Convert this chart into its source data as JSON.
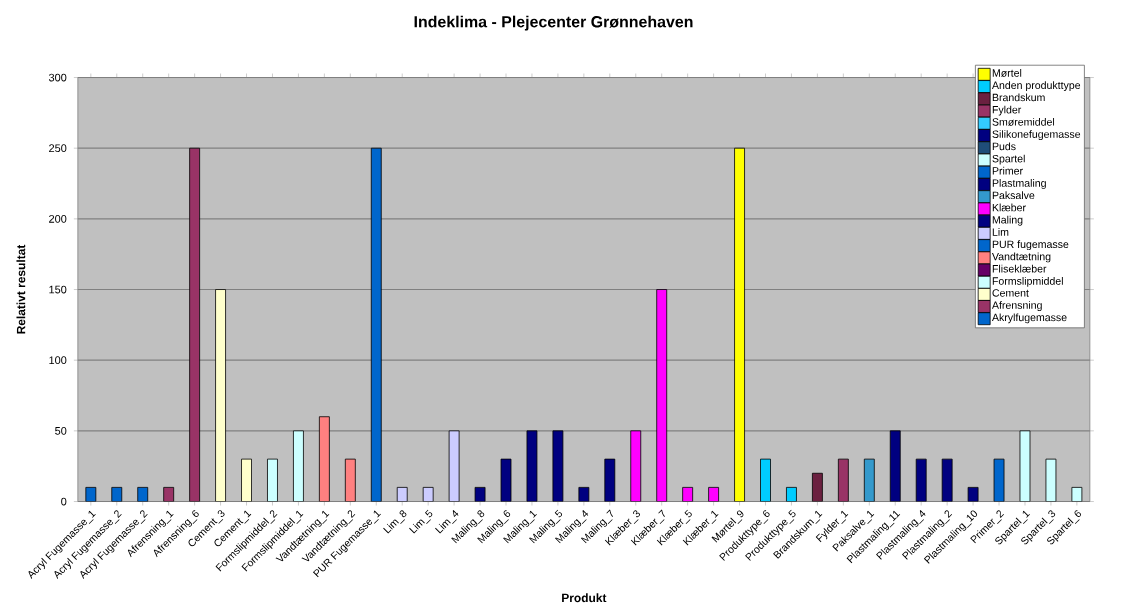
{
  "chart_data": {
    "type": "bar",
    "title": "Indeklima - Plejecenter Grønnehaven",
    "xlabel": "Produkt",
    "ylabel": "Relativt resultat",
    "categories": [
      "Acryl Fugemasse_1",
      "Acryl Fugemasse_2",
      "Acryl Fugemasse_2",
      "Afrensning_1",
      "Afrensning_6",
      "Cement_3",
      "Cement_1",
      "Formslipmiddel_2",
      "Formslipmiddel_1",
      "Vandtætning_1",
      "Vandtætning_2",
      "PUR Fugemasse_1",
      "Lim_8",
      "Lim_5",
      "Lim_4",
      "Maling_8",
      "Maling_6",
      "Maling_1",
      "Maling_5",
      "Maling_4",
      "Maling_7",
      "Klæber_3",
      "Klæber_7",
      "Klæber_5",
      "Klæber_1",
      "Mørtel_9",
      "Produkttype_6",
      "Produkttype_5",
      "Brandskum_1",
      "Fylder_1",
      "Paksalve_1",
      "Plastmaling_11",
      "Plastmaling_4",
      "Plastmaling_2",
      "Plastmaling_10",
      "Primer_2",
      "Spartel_1",
      "Spartel_3",
      "Spartel_6"
    ],
    "stacked": true,
    "ylim": [
      0,
      300
    ],
    "yticks": [
      0,
      50,
      100,
      150,
      200,
      250,
      300
    ],
    "grid": "y",
    "legend": "top right",
    "series": [
      {
        "name": "Mørtel",
        "color": "#ffff00",
        "values": [
          null,
          null,
          null,
          null,
          null,
          null,
          null,
          null,
          null,
          null,
          null,
          null,
          null,
          null,
          null,
          null,
          null,
          null,
          null,
          null,
          null,
          null,
          null,
          null,
          null,
          250,
          null,
          null,
          null,
          null,
          null,
          null,
          null,
          null,
          null,
          null,
          null,
          null,
          null
        ]
      },
      {
        "name": "Anden produkttype",
        "color": "#00ccff",
        "values": [
          null,
          null,
          null,
          null,
          null,
          null,
          null,
          null,
          null,
          null,
          null,
          null,
          null,
          null,
          null,
          null,
          null,
          null,
          null,
          null,
          null,
          null,
          null,
          null,
          null,
          null,
          30,
          10,
          null,
          null,
          null,
          null,
          null,
          null,
          null,
          null,
          null,
          null,
          null
        ]
      },
      {
        "name": "Brandskum",
        "color": "#6b2040",
        "values": [
          null,
          null,
          null,
          null,
          null,
          null,
          null,
          null,
          null,
          null,
          null,
          null,
          null,
          null,
          null,
          null,
          null,
          null,
          null,
          null,
          null,
          null,
          null,
          null,
          null,
          null,
          null,
          null,
          20,
          null,
          null,
          null,
          null,
          null,
          null,
          null,
          null,
          null,
          null
        ]
      },
      {
        "name": "Fylder",
        "color": "#993366",
        "values": [
          null,
          null,
          null,
          null,
          null,
          null,
          null,
          null,
          null,
          null,
          null,
          null,
          null,
          null,
          null,
          null,
          null,
          null,
          null,
          null,
          null,
          null,
          null,
          null,
          null,
          null,
          null,
          null,
          null,
          30,
          null,
          null,
          null,
          null,
          null,
          null,
          null,
          null,
          null
        ]
      },
      {
        "name": "Smøremiddel",
        "color": "#33ccff",
        "values": [
          null,
          null,
          null,
          null,
          null,
          null,
          null,
          null,
          null,
          null,
          null,
          null,
          null,
          null,
          null,
          null,
          null,
          null,
          null,
          null,
          null,
          null,
          null,
          null,
          null,
          null,
          null,
          null,
          null,
          null,
          null,
          null,
          null,
          null,
          null,
          null,
          null,
          null,
          null
        ]
      },
      {
        "name": "Silikonefugemasse",
        "color": "#000080",
        "values": [
          null,
          null,
          null,
          null,
          null,
          null,
          null,
          null,
          null,
          null,
          null,
          null,
          null,
          null,
          null,
          null,
          null,
          null,
          null,
          null,
          null,
          null,
          null,
          null,
          null,
          null,
          null,
          null,
          null,
          null,
          null,
          null,
          null,
          null,
          null,
          null,
          null,
          null,
          null
        ]
      },
      {
        "name": "Puds",
        "color": "#1f4e79",
        "values": [
          null,
          null,
          null,
          null,
          null,
          null,
          null,
          null,
          null,
          null,
          null,
          null,
          null,
          null,
          null,
          null,
          null,
          null,
          null,
          null,
          null,
          null,
          null,
          null,
          null,
          null,
          null,
          null,
          null,
          null,
          null,
          null,
          null,
          null,
          null,
          null,
          null,
          null,
          null
        ]
      },
      {
        "name": "Spartel",
        "color": "#ccffff",
        "values": [
          null,
          null,
          null,
          null,
          null,
          null,
          null,
          null,
          null,
          null,
          null,
          null,
          null,
          null,
          null,
          null,
          null,
          null,
          null,
          null,
          null,
          null,
          null,
          null,
          null,
          null,
          null,
          null,
          null,
          null,
          null,
          null,
          null,
          null,
          null,
          null,
          50,
          30,
          10
        ]
      },
      {
        "name": "Primer",
        "color": "#0066cc",
        "values": [
          null,
          null,
          null,
          null,
          null,
          null,
          null,
          null,
          null,
          null,
          null,
          null,
          null,
          null,
          null,
          null,
          null,
          null,
          null,
          null,
          null,
          null,
          null,
          null,
          null,
          null,
          null,
          null,
          null,
          null,
          null,
          null,
          null,
          null,
          null,
          30,
          null,
          null,
          null
        ]
      },
      {
        "name": "Plastmaling",
        "color": "#000080",
        "values": [
          null,
          null,
          null,
          null,
          null,
          null,
          null,
          null,
          null,
          null,
          null,
          null,
          null,
          null,
          null,
          null,
          null,
          null,
          null,
          null,
          null,
          null,
          null,
          null,
          null,
          null,
          null,
          null,
          null,
          null,
          null,
          50,
          30,
          30,
          10,
          null,
          null,
          null,
          null
        ]
      },
      {
        "name": "Paksalve",
        "color": "#3399cc",
        "values": [
          null,
          null,
          null,
          null,
          null,
          null,
          null,
          null,
          null,
          null,
          null,
          null,
          null,
          null,
          null,
          null,
          null,
          null,
          null,
          null,
          null,
          null,
          null,
          null,
          null,
          null,
          null,
          null,
          null,
          null,
          30,
          null,
          null,
          null,
          null,
          null,
          null,
          null,
          null
        ]
      },
      {
        "name": "Klæber",
        "color": "#ff00ff",
        "values": [
          null,
          null,
          null,
          null,
          null,
          null,
          null,
          null,
          null,
          null,
          null,
          null,
          null,
          null,
          null,
          null,
          null,
          null,
          null,
          null,
          null,
          50,
          150,
          10,
          10,
          null,
          null,
          null,
          null,
          null,
          null,
          null,
          null,
          null,
          null,
          null,
          null,
          null,
          null
        ]
      },
      {
        "name": "Maling",
        "color": "#000080",
        "values": [
          null,
          null,
          null,
          null,
          null,
          null,
          null,
          null,
          null,
          null,
          null,
          null,
          null,
          null,
          null,
          10,
          30,
          50,
          50,
          10,
          30,
          null,
          null,
          null,
          null,
          null,
          null,
          null,
          null,
          null,
          null,
          null,
          null,
          null,
          null,
          null,
          null,
          null,
          null
        ]
      },
      {
        "name": "Lim",
        "color": "#ccccff",
        "values": [
          null,
          null,
          null,
          null,
          null,
          null,
          null,
          null,
          null,
          null,
          null,
          null,
          10,
          10,
          50,
          null,
          null,
          null,
          null,
          null,
          null,
          null,
          null,
          null,
          null,
          null,
          null,
          null,
          null,
          null,
          null,
          null,
          null,
          null,
          null,
          null,
          null,
          null,
          null
        ]
      },
      {
        "name": "PUR fugemasse",
        "color": "#0066cc",
        "values": [
          null,
          null,
          null,
          null,
          null,
          null,
          null,
          null,
          null,
          null,
          null,
          250,
          null,
          null,
          null,
          null,
          null,
          null,
          null,
          null,
          null,
          null,
          null,
          null,
          null,
          null,
          null,
          null,
          null,
          null,
          null,
          null,
          null,
          null,
          null,
          null,
          null,
          null,
          null
        ]
      },
      {
        "name": "Vandtætning",
        "color": "#ff8080",
        "values": [
          null,
          null,
          null,
          null,
          null,
          null,
          null,
          null,
          null,
          60,
          30,
          null,
          null,
          null,
          null,
          null,
          null,
          null,
          null,
          null,
          null,
          null,
          null,
          null,
          null,
          null,
          null,
          null,
          null,
          null,
          null,
          null,
          null,
          null,
          null,
          null,
          null,
          null,
          null
        ]
      },
      {
        "name": "Fliseklæber",
        "color": "#660066",
        "values": [
          null,
          null,
          null,
          null,
          null,
          null,
          null,
          null,
          null,
          null,
          null,
          null,
          null,
          null,
          null,
          null,
          null,
          null,
          null,
          null,
          null,
          null,
          null,
          null,
          null,
          null,
          null,
          null,
          null,
          null,
          null,
          null,
          null,
          null,
          null,
          null,
          null,
          null,
          null
        ]
      },
      {
        "name": "Formslipmiddel",
        "color": "#ccffff",
        "values": [
          null,
          null,
          null,
          null,
          null,
          null,
          null,
          30,
          50,
          null,
          null,
          null,
          null,
          null,
          null,
          null,
          null,
          null,
          null,
          null,
          null,
          null,
          null,
          null,
          null,
          null,
          null,
          null,
          null,
          null,
          null,
          null,
          null,
          null,
          null,
          null,
          null,
          null,
          null
        ]
      },
      {
        "name": "Cement",
        "color": "#ffffcc",
        "values": [
          null,
          null,
          null,
          null,
          null,
          150,
          30,
          null,
          null,
          null,
          null,
          null,
          null,
          null,
          null,
          null,
          null,
          null,
          null,
          null,
          null,
          null,
          null,
          null,
          null,
          null,
          null,
          null,
          null,
          null,
          null,
          null,
          null,
          null,
          null,
          null,
          null,
          null,
          null
        ]
      },
      {
        "name": "Afrensning",
        "color": "#993366",
        "values": [
          null,
          null,
          null,
          10,
          250,
          null,
          null,
          null,
          null,
          null,
          null,
          null,
          null,
          null,
          null,
          null,
          null,
          null,
          null,
          null,
          null,
          null,
          null,
          null,
          null,
          null,
          null,
          null,
          null,
          null,
          null,
          null,
          null,
          null,
          null,
          null,
          null,
          null,
          null
        ]
      },
      {
        "name": "Akrylfugemasse",
        "color": "#0066cc",
        "values": [
          10,
          10,
          10,
          null,
          null,
          null,
          null,
          null,
          null,
          null,
          null,
          null,
          null,
          null,
          null,
          null,
          null,
          null,
          null,
          null,
          null,
          null,
          null,
          null,
          null,
          null,
          null,
          null,
          null,
          null,
          null,
          null,
          null,
          null,
          null,
          null,
          null,
          null,
          null
        ]
      }
    ]
  }
}
